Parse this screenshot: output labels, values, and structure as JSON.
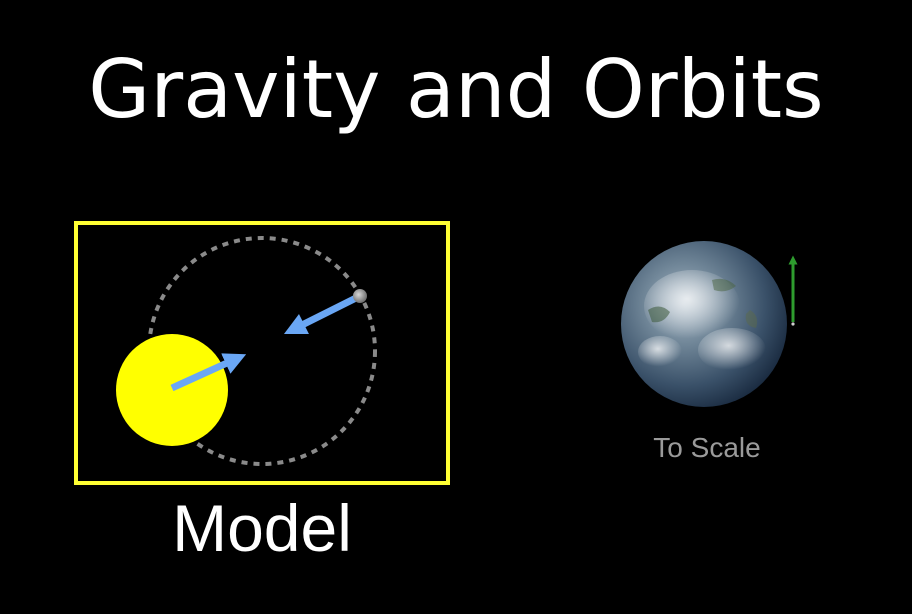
{
  "title": "Gravity and Orbits",
  "model": {
    "label": "Model",
    "frame_color": "#ffff33",
    "sun_color": "#ffff00",
    "arrow_color": "#6aa7f5",
    "orbit_color": "#8a8a8a",
    "icons": {
      "sun": "sun-icon",
      "planet": "planet-icon",
      "orbit": "orbit-path",
      "force": "force-arrow"
    }
  },
  "to_scale": {
    "label": "To Scale",
    "velocity_arrow_color": "#2e9c2e",
    "icons": {
      "earth": "earth-icon",
      "velocity": "velocity-arrow"
    }
  }
}
